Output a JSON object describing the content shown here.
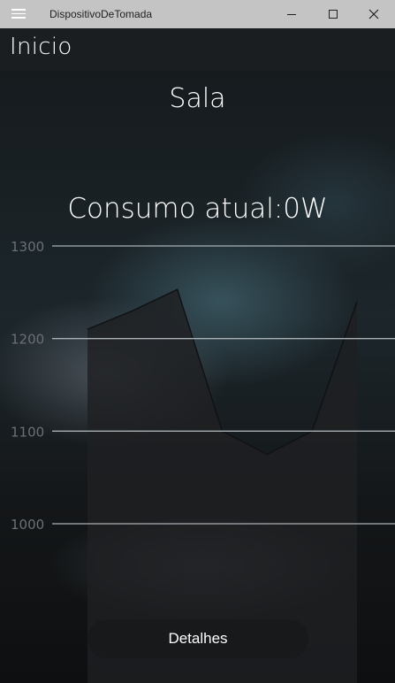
{
  "window": {
    "title": "DispositivoDeTomada",
    "menu_icon": "hamburger-menu-icon",
    "minimize_icon": "minimize-icon",
    "maximize_icon": "maximize-icon",
    "close_icon": "close-icon"
  },
  "appbar": {
    "title": "Inicio"
  },
  "main": {
    "room_name": "Sala",
    "consumption_text": "Consumo atual:0W",
    "details_button": "Detalhes"
  },
  "colors": {
    "titlebar": "#c4c4c4",
    "appbar": "#1b1e21",
    "text": "#ffffff",
    "gridline": "#a9b0b4",
    "area_fill": "#1e2022"
  },
  "chart_data": {
    "type": "area",
    "x": [
      1,
      2,
      3,
      4,
      5,
      6,
      7
    ],
    "series": [
      {
        "values": [
          1210,
          1230,
          1253,
          1100,
          1075,
          1100,
          1240
        ]
      }
    ],
    "yticks": [
      1000,
      1100,
      1200,
      1300
    ],
    "ylim": [
      1000,
      1300
    ],
    "grid": true,
    "legend": "none",
    "title": "",
    "xlabel": "",
    "ylabel": ""
  }
}
